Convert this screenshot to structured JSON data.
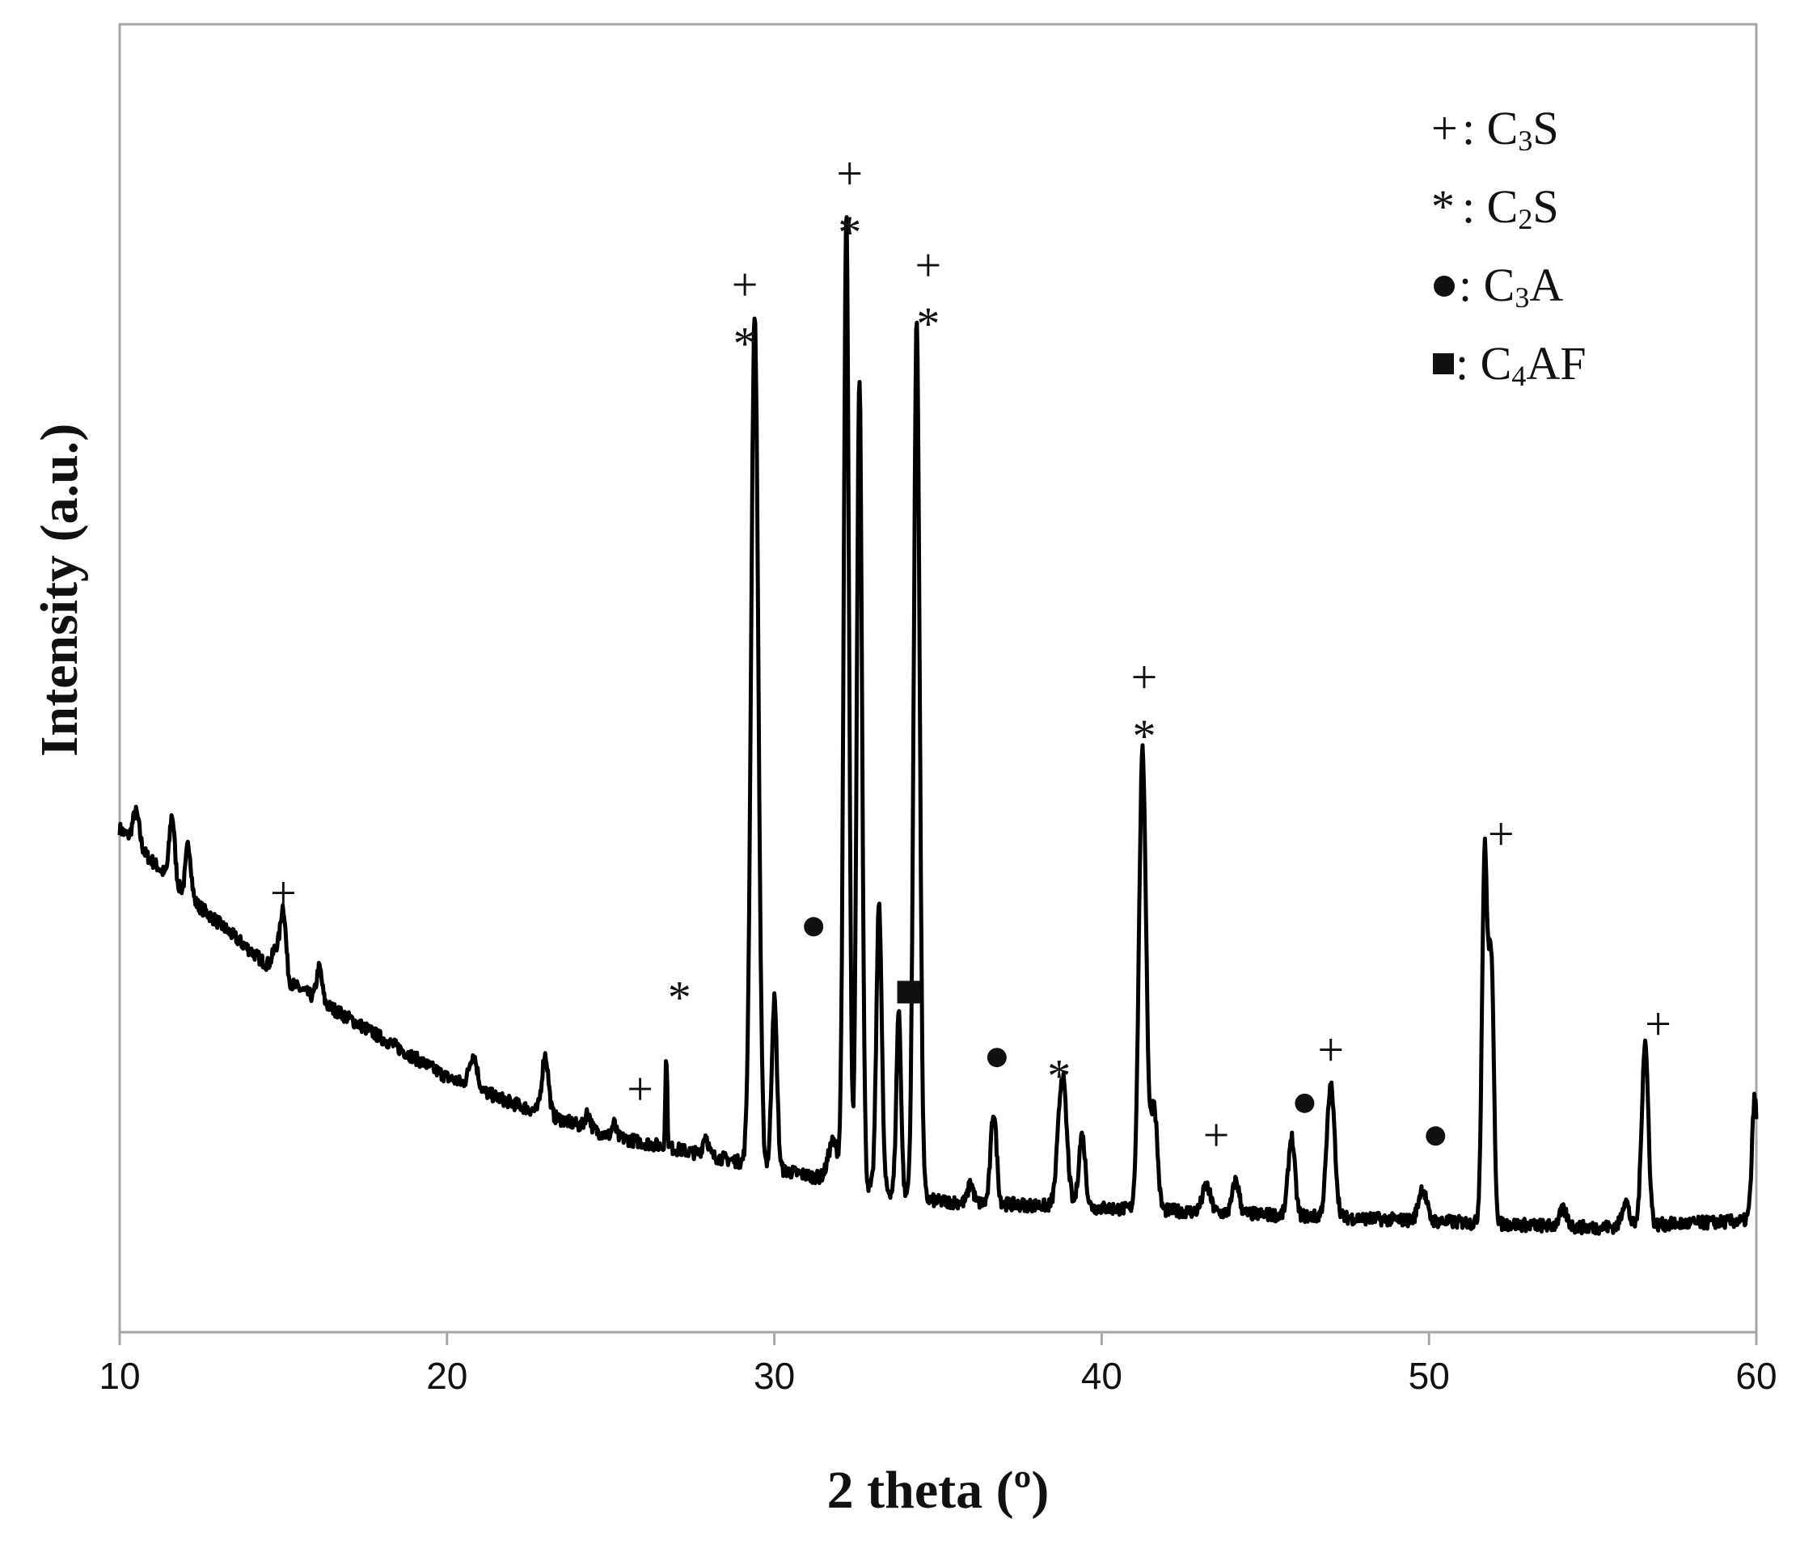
{
  "chart_data": {
    "type": "line",
    "xlabel": "2 theta (º)",
    "ylabel": "Intensity (a.u.)",
    "xlim": [
      10,
      60
    ],
    "ylim": [
      0,
      100
    ],
    "x_ticks": [
      "10",
      "20",
      "30",
      "40",
      "50",
      "60"
    ],
    "grid": false,
    "legend_position": "top-right",
    "line_color": "#000000",
    "frame_color": "#a6a6a6",
    "legend": [
      {
        "symbol": "+",
        "symbol_type": "plus",
        "label_main": "C",
        "label_sub": "3",
        "label_tail": "S",
        "separator": ":"
      },
      {
        "symbol": "*",
        "symbol_type": "asterisk",
        "label_main": "C",
        "label_sub": "2",
        "label_tail": "S",
        "separator": ":"
      },
      {
        "symbol": "●",
        "symbol_type": "circle",
        "label_main": "C",
        "label_sub": "3",
        "label_tail": "A",
        "separator": ":"
      },
      {
        "symbol": "■",
        "symbol_type": "square",
        "label_main": "C",
        "label_sub": "4",
        "label_tail": "AF",
        "separator": ":"
      }
    ],
    "baseline": [
      [
        10,
        38.5
      ],
      [
        12,
        33.5
      ],
      [
        15,
        27
      ],
      [
        18,
        22.5
      ],
      [
        20,
        19.5
      ],
      [
        22,
        17.5
      ],
      [
        25,
        15
      ],
      [
        27,
        14
      ],
      [
        30,
        12.5
      ],
      [
        35,
        10
      ],
      [
        40,
        9.5
      ],
      [
        45,
        9
      ],
      [
        50,
        8.5
      ],
      [
        55,
        8
      ],
      [
        59.6,
        8.5
      ],
      [
        60,
        9
      ]
    ],
    "peaks": [
      {
        "x": 10.5,
        "h": 2.5,
        "w": 0.1
      },
      {
        "x": 11.6,
        "h": 5,
        "w": 0.08
      },
      {
        "x": 12.1,
        "h": 4,
        "w": 0.08
      },
      {
        "x": 14.8,
        "h": 2,
        "w": 0.12
      },
      {
        "x": 15.0,
        "h": 5,
        "w": 0.08
      },
      {
        "x": 16.1,
        "h": 2.5,
        "w": 0.08
      },
      {
        "x": 20.8,
        "h": 2.5,
        "w": 0.12
      },
      {
        "x": 23.0,
        "h": 4.5,
        "w": 0.1
      },
      {
        "x": 24.3,
        "h": 1.2,
        "w": 0.08
      },
      {
        "x": 25.1,
        "h": 1,
        "w": 0.06
      },
      {
        "x": 26.7,
        "h": 7,
        "w": 0.03
      },
      {
        "x": 27.9,
        "h": 1.5,
        "w": 0.08
      },
      {
        "x": 29.4,
        "h": 65,
        "w": 0.11
      },
      {
        "x": 30.0,
        "h": 13,
        "w": 0.08
      },
      {
        "x": 31.8,
        "h": 3,
        "w": 0.15
      },
      {
        "x": 32.2,
        "h": 74,
        "w": 0.08
      },
      {
        "x": 32.6,
        "h": 62,
        "w": 0.08
      },
      {
        "x": 33.2,
        "h": 22,
        "w": 0.08
      },
      {
        "x": 33.8,
        "h": 14,
        "w": 0.07
      },
      {
        "x": 34.35,
        "h": 67,
        "w": 0.09
      },
      {
        "x": 36.0,
        "h": 1.5,
        "w": 0.08
      },
      {
        "x": 36.7,
        "h": 7,
        "w": 0.09
      },
      {
        "x": 38.8,
        "h": 10,
        "w": 0.13
      },
      {
        "x": 39.4,
        "h": 5.5,
        "w": 0.1
      },
      {
        "x": 41.25,
        "h": 35,
        "w": 0.11
      },
      {
        "x": 41.6,
        "h": 8,
        "w": 0.1
      },
      {
        "x": 43.2,
        "h": 2,
        "w": 0.12
      },
      {
        "x": 44.1,
        "h": 2.5,
        "w": 0.1
      },
      {
        "x": 45.8,
        "h": 6,
        "w": 0.1
      },
      {
        "x": 47.0,
        "h": 10,
        "w": 0.12
      },
      {
        "x": 49.8,
        "h": 2.5,
        "w": 0.12
      },
      {
        "x": 51.7,
        "h": 28,
        "w": 0.08
      },
      {
        "x": 51.9,
        "h": 20,
        "w": 0.08
      },
      {
        "x": 54.1,
        "h": 1.2,
        "w": 0.12
      },
      {
        "x": 56.0,
        "h": 2,
        "w": 0.1
      },
      {
        "x": 56.6,
        "h": 14,
        "w": 0.1
      },
      {
        "x": 59.95,
        "h": 9,
        "w": 0.08
      }
    ],
    "annotations": [
      {
        "symbol": "+",
        "x": 15.0,
        "y": 33.5
      },
      {
        "symbol": "*",
        "x": 27.1,
        "y": 25.5
      },
      {
        "symbol": "+",
        "x": 25.9,
        "y": 18.5
      },
      {
        "symbol": "+",
        "x": 29.1,
        "y": 80.0
      },
      {
        "symbol": "*",
        "x": 29.1,
        "y": 75.5
      },
      {
        "symbol": "●",
        "x": 31.2,
        "y": 31.0
      },
      {
        "symbol": "+",
        "x": 32.3,
        "y": 88.5
      },
      {
        "symbol": "*",
        "x": 32.3,
        "y": 84.0
      },
      {
        "symbol": "■",
        "x": 34.1,
        "y": 26.0
      },
      {
        "symbol": "+",
        "x": 34.7,
        "y": 81.5
      },
      {
        "symbol": "*",
        "x": 34.7,
        "y": 77.0
      },
      {
        "symbol": "●",
        "x": 36.8,
        "y": 21.0
      },
      {
        "symbol": "*",
        "x": 38.7,
        "y": 19.5
      },
      {
        "symbol": "+",
        "x": 41.3,
        "y": 50.0
      },
      {
        "symbol": "*",
        "x": 41.3,
        "y": 45.5
      },
      {
        "symbol": "+",
        "x": 43.5,
        "y": 15.0
      },
      {
        "symbol": "●",
        "x": 46.2,
        "y": 17.5
      },
      {
        "symbol": "+",
        "x": 47.0,
        "y": 21.5
      },
      {
        "symbol": "●",
        "x": 50.2,
        "y": 15.0
      },
      {
        "symbol": "+",
        "x": 52.2,
        "y": 38.0
      },
      {
        "symbol": "+",
        "x": 57.0,
        "y": 23.5
      }
    ]
  }
}
